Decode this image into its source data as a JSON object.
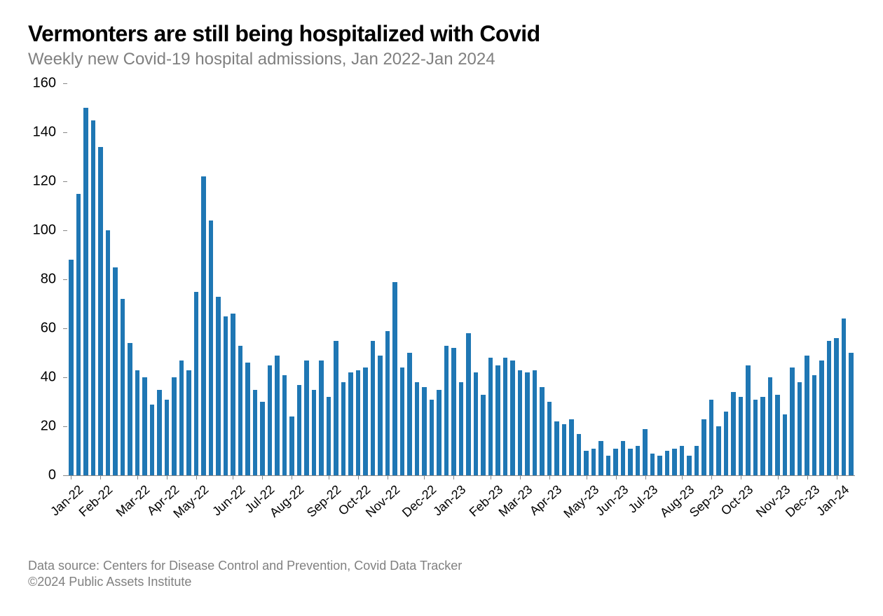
{
  "title": "Vermonters are still being hospitalized with Covid",
  "subtitle": "Weekly new Covid-19 hospital admissions, Jan 2022-Jan 2024",
  "source_line": "Data source: Centers for Disease Control and Prevention, Covid Data Tracker",
  "copyright_line": "©2024 Public Assets Institute",
  "chart": {
    "type": "bar",
    "bar_color": "#1f77b4",
    "background_color": "#ffffff",
    "axis_color": "#888888",
    "text_color": "#000000",
    "title_fontsize": 32,
    "subtitle_fontsize": 24,
    "tick_fontsize": 20,
    "ylim": [
      0,
      160
    ],
    "ytick_step": 20,
    "yticks": [
      0,
      20,
      40,
      60,
      80,
      100,
      120,
      140,
      160
    ],
    "xtick_rotation_deg": -42,
    "x_month_labels": [
      "Jan-22",
      "Feb-22",
      "Mar-22",
      "Apr-22",
      "May-22",
      "Jun-22",
      "Jul-22",
      "Aug-22",
      "Sep-22",
      "Oct-22",
      "Nov-22",
      "Dec-22",
      "Jan-23",
      "Feb-23",
      "Mar-23",
      "Apr-23",
      "May-23",
      "Jun-23",
      "Jul-23",
      "Aug-23",
      "Sep-23",
      "Oct-23",
      "Nov-23",
      "Dec-23",
      "Jan-24"
    ],
    "x_label_bar_index": [
      0,
      4,
      9,
      13,
      17,
      22,
      26,
      30,
      35,
      39,
      43,
      48,
      52,
      57,
      61,
      65,
      70,
      74,
      78,
      83,
      87,
      91,
      96,
      100,
      104
    ],
    "values": [
      88,
      115,
      150,
      145,
      134,
      100,
      85,
      72,
      54,
      43,
      40,
      29,
      35,
      31,
      40,
      47,
      43,
      75,
      122,
      104,
      73,
      65,
      66,
      53,
      46,
      35,
      30,
      45,
      49,
      41,
      24,
      37,
      47,
      35,
      47,
      32,
      55,
      38,
      42,
      43,
      44,
      55,
      49,
      59,
      79,
      44,
      50,
      38,
      36,
      31,
      35,
      53,
      52,
      38,
      58,
      42,
      33,
      48,
      45,
      48,
      47,
      43,
      42,
      43,
      36,
      30,
      22,
      21,
      23,
      17,
      10,
      11,
      14,
      8,
      11,
      14,
      11,
      12,
      19,
      9,
      8,
      10,
      11,
      12,
      8,
      12,
      23,
      31,
      20,
      26,
      34,
      32,
      45,
      31,
      32,
      40,
      33,
      25,
      44,
      38,
      49,
      41,
      47,
      55,
      56,
      64,
      50
    ]
  }
}
